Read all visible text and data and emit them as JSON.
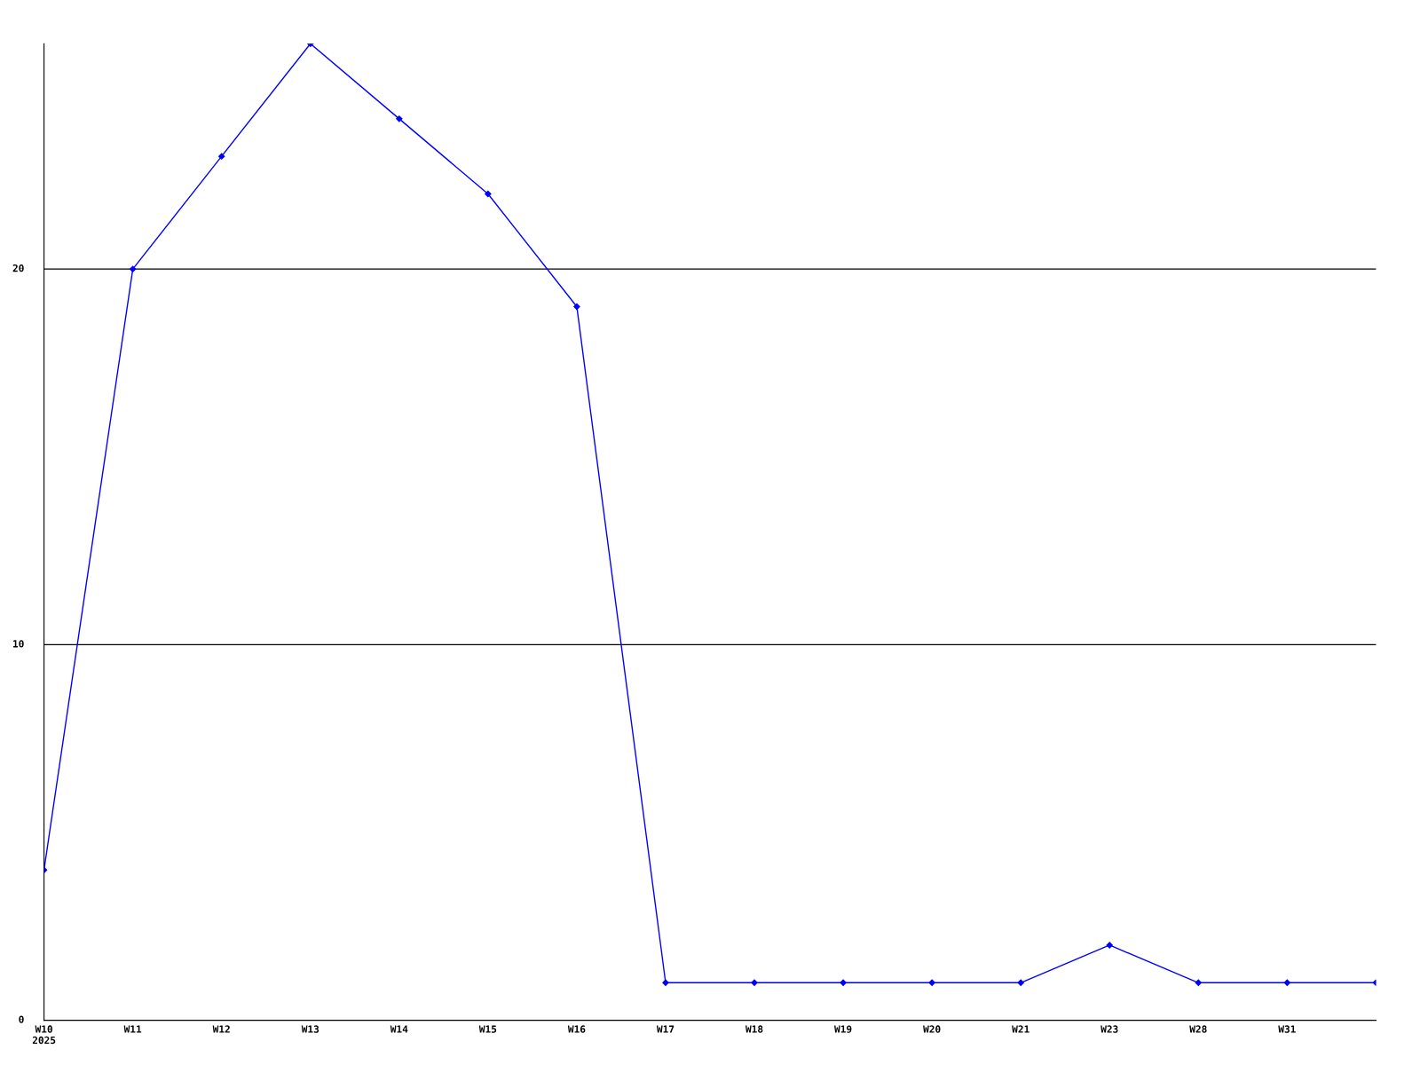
{
  "chart_data": {
    "type": "line",
    "categories": [
      "W10\n2025",
      "W11",
      "W12",
      "W13",
      "W14",
      "W15",
      "W16",
      "W17",
      "W18",
      "W19",
      "W20",
      "W21",
      "W23",
      "W28",
      "W31",
      null
    ],
    "series": [
      {
        "color": "#0000ff",
        "values": [
          4,
          20,
          23,
          26,
          24,
          22,
          19,
          1,
          1,
          1,
          1,
          1,
          2,
          1,
          1,
          1
        ]
      }
    ],
    "ylim": [
      0,
      26
    ],
    "yticks": [
      0,
      10,
      20
    ],
    "grid": "y",
    "marker": "diamond",
    "line_style": "solid"
  }
}
